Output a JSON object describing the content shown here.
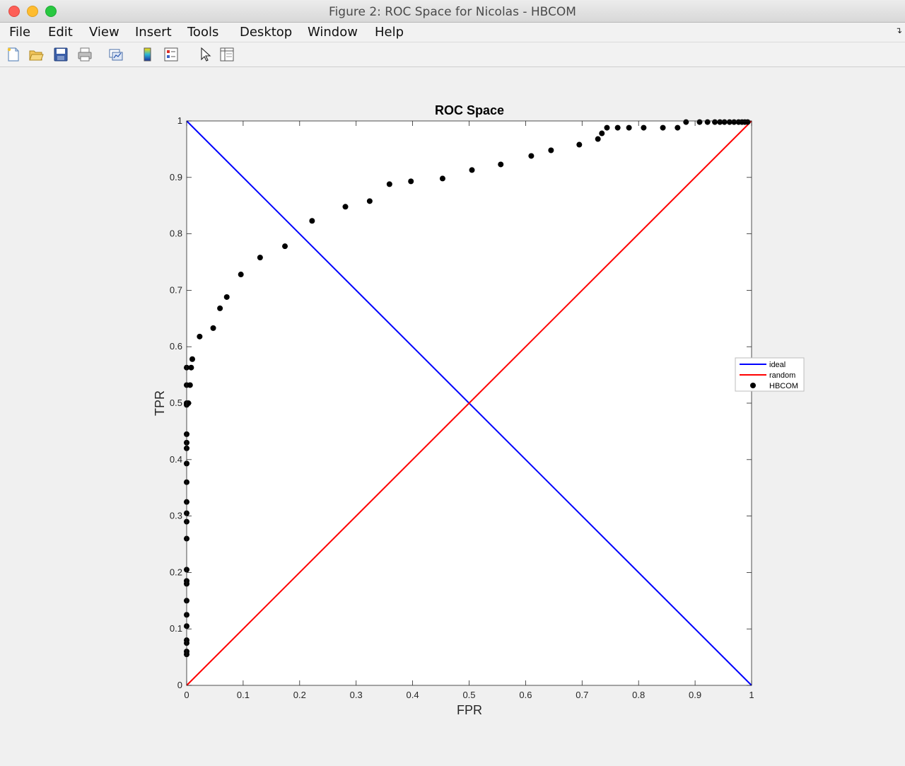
{
  "window": {
    "title": "Figure 2: ROC Space for Nicolas - HBCOM"
  },
  "menu": [
    "File",
    "Edit",
    "View",
    "Insert",
    "Tools",
    "Desktop",
    "Window",
    "Help"
  ],
  "toolbar_icons": [
    "new-figure-icon",
    "open-file-icon",
    "save-icon",
    "print-icon",
    "link-plot-icon",
    "insert-colorbar-icon",
    "insert-legend-icon",
    "edit-plot-icon",
    "property-inspector-icon"
  ],
  "chart_data": {
    "type": "scatter",
    "title": "ROC Space",
    "xlabel": "FPR",
    "ylabel": "TPR",
    "xlim": [
      0,
      1
    ],
    "ylim": [
      0,
      1
    ],
    "xticks": [
      "0",
      "0.1",
      "0.2",
      "0.3",
      "0.4",
      "0.5",
      "0.6",
      "0.7",
      "0.8",
      "0.9",
      "1"
    ],
    "yticks": [
      "0",
      "0.1",
      "0.2",
      "0.3",
      "0.4",
      "0.5",
      "0.6",
      "0.7",
      "0.8",
      "0.9",
      "1"
    ],
    "legend_position": "right",
    "series": [
      {
        "name": "ideal",
        "type": "line",
        "color": "#0000ff",
        "x": [
          0,
          1
        ],
        "y": [
          1,
          0
        ]
      },
      {
        "name": "random",
        "type": "line",
        "color": "#ff0000",
        "x": [
          0,
          1
        ],
        "y": [
          0,
          1
        ]
      },
      {
        "name": "HBCOM",
        "type": "scatter",
        "color": "#000000",
        "x": [
          0,
          0,
          0,
          0,
          0,
          0,
          0,
          0,
          0,
          0,
          0,
          0,
          0,
          0,
          0,
          0,
          0,
          0,
          0,
          0,
          0,
          0,
          0,
          0.003,
          0.006,
          0.008,
          0.01,
          0.023,
          0.047,
          0.059,
          0.071,
          0.096,
          0.13,
          0.174,
          0.222,
          0.281,
          0.324,
          0.359,
          0.397,
          0.453,
          0.505,
          0.556,
          0.61,
          0.645,
          0.695,
          0.728,
          0.735,
          0.744,
          0.763,
          0.783,
          0.809,
          0.843,
          0.869,
          0.884,
          0.908,
          0.922,
          0.935,
          0.944,
          0.952,
          0.961,
          0.969,
          0.977,
          0.983,
          0.988,
          0.993
        ],
        "y": [
          0.055,
          0.06,
          0.075,
          0.08,
          0.105,
          0.125,
          0.15,
          0.18,
          0.185,
          0.205,
          0.26,
          0.29,
          0.305,
          0.325,
          0.36,
          0.393,
          0.42,
          0.43,
          0.445,
          0.497,
          0.5,
          0.532,
          0.563,
          0.5,
          0.532,
          0.563,
          0.578,
          0.618,
          0.633,
          0.668,
          0.688,
          0.728,
          0.758,
          0.778,
          0.823,
          0.848,
          0.858,
          0.888,
          0.893,
          0.898,
          0.913,
          0.923,
          0.938,
          0.948,
          0.958,
          0.968,
          0.978,
          0.988,
          0.988,
          0.988,
          0.988,
          0.988,
          0.988,
          0.998,
          0.998,
          0.998,
          0.998,
          0.998,
          0.998,
          0.998,
          0.998,
          0.998,
          0.998,
          0.998,
          0.998
        ]
      }
    ]
  }
}
